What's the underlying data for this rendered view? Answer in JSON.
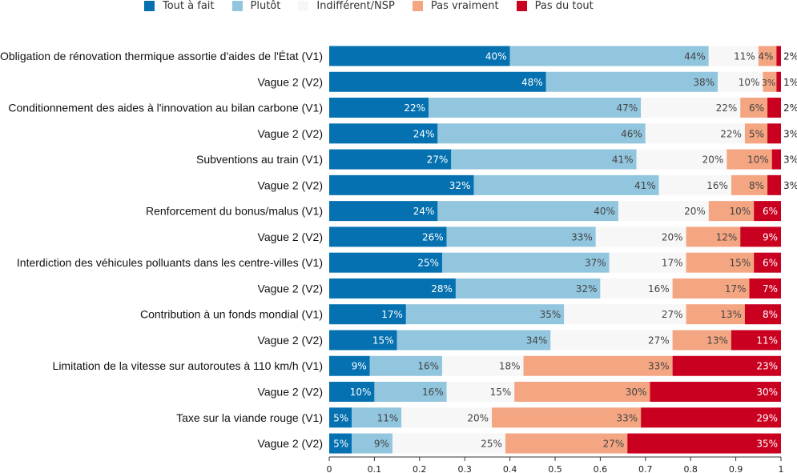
{
  "chart_data": {
    "type": "bar",
    "orientation": "horizontal",
    "stacked": true,
    "legend_position": "top",
    "grid": false,
    "categories": [
      "Obligation de rénovation thermique assortie d'aides de l'État (V1)",
      "Vague 2 (V2)",
      "Conditionnement des aides à l'innovation au bilan carbone (V1)",
      "Vague 2 (V2)",
      "Subventions au train (V1)",
      "Vague 2 (V2)",
      "Renforcement du bonus/malus (V1)",
      "Vague 2 (V2)",
      "Interdiction des véhicules polluants dans les centre-villes (V1)",
      "Vague 2 (V2)",
      "Contribution à un fonds mondial (V1)",
      "Vague 2 (V2)",
      "Limitation de la vitesse sur autoroutes à 110 km/h (V1)",
      "Vague 2 (V2)",
      "Taxe sur la viande rouge (V1)",
      "Vague 2 (V2)"
    ],
    "series": [
      {
        "name": "Tout à fait",
        "color": "#0571b0",
        "values": [
          0.4,
          0.48,
          0.22,
          0.24,
          0.27,
          0.32,
          0.24,
          0.26,
          0.25,
          0.28,
          0.17,
          0.15,
          0.09,
          0.1,
          0.05,
          0.05
        ]
      },
      {
        "name": "Plutôt",
        "color": "#92c5de",
        "values": [
          0.44,
          0.38,
          0.47,
          0.46,
          0.41,
          0.41,
          0.4,
          0.33,
          0.37,
          0.32,
          0.35,
          0.34,
          0.16,
          0.16,
          0.11,
          0.09
        ]
      },
      {
        "name": "Indifférent/NSP",
        "color": "#f7f7f7",
        "values": [
          0.11,
          0.1,
          0.22,
          0.22,
          0.2,
          0.16,
          0.2,
          0.2,
          0.17,
          0.16,
          0.27,
          0.27,
          0.18,
          0.15,
          0.2,
          0.25
        ]
      },
      {
        "name": "Pas vraiment",
        "color": "#f4a582",
        "values": [
          0.04,
          0.03,
          0.06,
          0.05,
          0.1,
          0.08,
          0.1,
          0.12,
          0.15,
          0.17,
          0.13,
          0.13,
          0.33,
          0.3,
          0.33,
          0.27
        ]
      },
      {
        "name": "Pas du tout",
        "color": "#ca0020",
        "values": [
          0.02,
          0.01,
          0.02,
          0.03,
          0.03,
          0.03,
          0.06,
          0.09,
          0.06,
          0.07,
          0.08,
          0.11,
          0.23,
          0.3,
          0.29,
          0.35
        ]
      }
    ],
    "data_labels": [
      [
        "40%",
        "44%",
        "11%",
        "4%",
        "2%"
      ],
      [
        "48%",
        "38%",
        "10%",
        "3%",
        "1%"
      ],
      [
        "22%",
        "47%",
        "22%",
        "6%",
        "2%"
      ],
      [
        "24%",
        "46%",
        "22%",
        "5%",
        "3%"
      ],
      [
        "27%",
        "41%",
        "20%",
        "10%",
        "3%"
      ],
      [
        "32%",
        "41%",
        "16%",
        "8%",
        "3%"
      ],
      [
        "24%",
        "40%",
        "20%",
        "10%",
        "6%"
      ],
      [
        "26%",
        "33%",
        "20%",
        "12%",
        "9%"
      ],
      [
        "25%",
        "37%",
        "17%",
        "15%",
        "6%"
      ],
      [
        "28%",
        "32%",
        "16%",
        "17%",
        "7%"
      ],
      [
        "17%",
        "35%",
        "27%",
        "13%",
        "8%"
      ],
      [
        "15%",
        "34%",
        "27%",
        "13%",
        "11%"
      ],
      [
        "9%",
        "16%",
        "18%",
        "33%",
        "23%"
      ],
      [
        "10%",
        "16%",
        "15%",
        "30%",
        "30%"
      ],
      [
        "5%",
        "11%",
        "20%",
        "33%",
        "29%"
      ],
      [
        "5%",
        "9%",
        "25%",
        "27%",
        "35%"
      ]
    ],
    "x_ticks": [
      "0",
      "0.1",
      "0.2",
      "0.3",
      "0.4",
      "0.5",
      "0.6",
      "0.7",
      "0.8",
      "0.9",
      "1"
    ],
    "xlim": [
      0,
      1
    ],
    "xlabel": "",
    "ylabel": "",
    "title": ""
  }
}
